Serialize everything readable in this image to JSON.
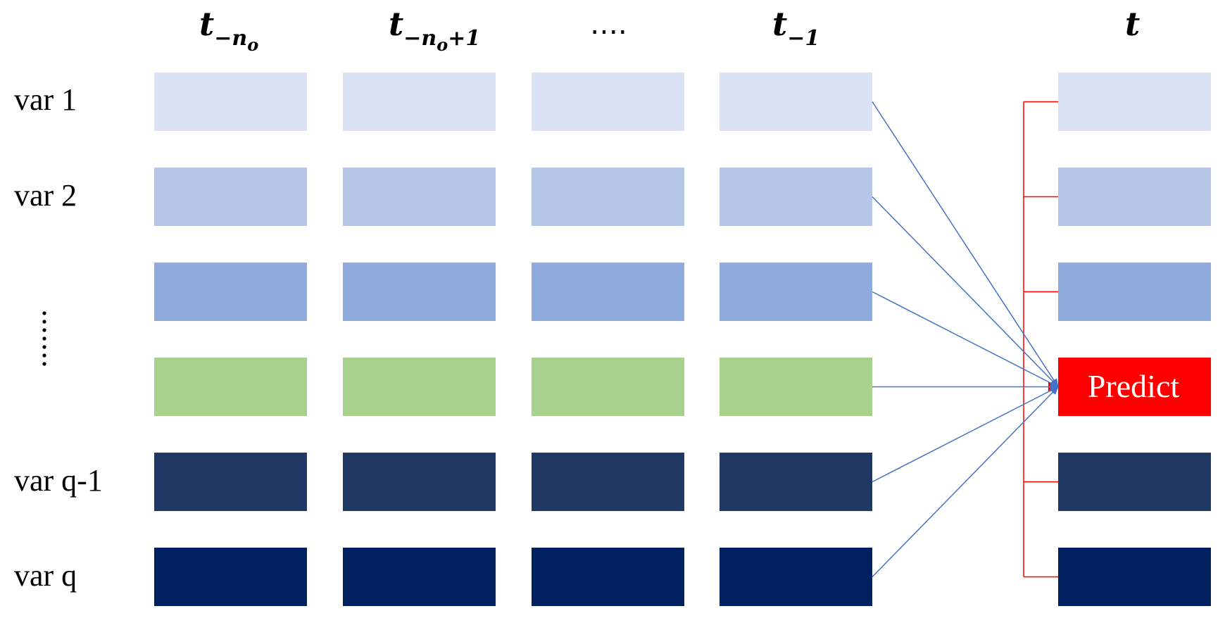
{
  "columns": {
    "col1": {
      "base": "t",
      "sub": "−n",
      "subsub": "o"
    },
    "col2": {
      "base": "t",
      "sub": "−n",
      "subsub": "o",
      "suffix": "+1"
    },
    "col3": {
      "text": "…."
    },
    "col4": {
      "base": "t",
      "sub": "−1"
    },
    "col5": {
      "base": "t"
    }
  },
  "rows": {
    "r1": {
      "label": "var 1"
    },
    "r2": {
      "label": "var 2"
    },
    "r3": {
      "label": ""
    },
    "r4": {
      "label": ""
    },
    "r5": {
      "label": "var q-1"
    },
    "r6": {
      "label": "var q"
    }
  },
  "row_dots": "⋮",
  "predict": {
    "label": "Predict"
  },
  "colors": {
    "row1": "#dae3f3",
    "row2": "#b4c7e7",
    "row3": "#8faadc",
    "row4": "#a9d18e",
    "row5": "#203864",
    "row6": "#002060",
    "predict": "#ff0000",
    "arrow": "#4472c4",
    "bracket": "#ff0000"
  }
}
